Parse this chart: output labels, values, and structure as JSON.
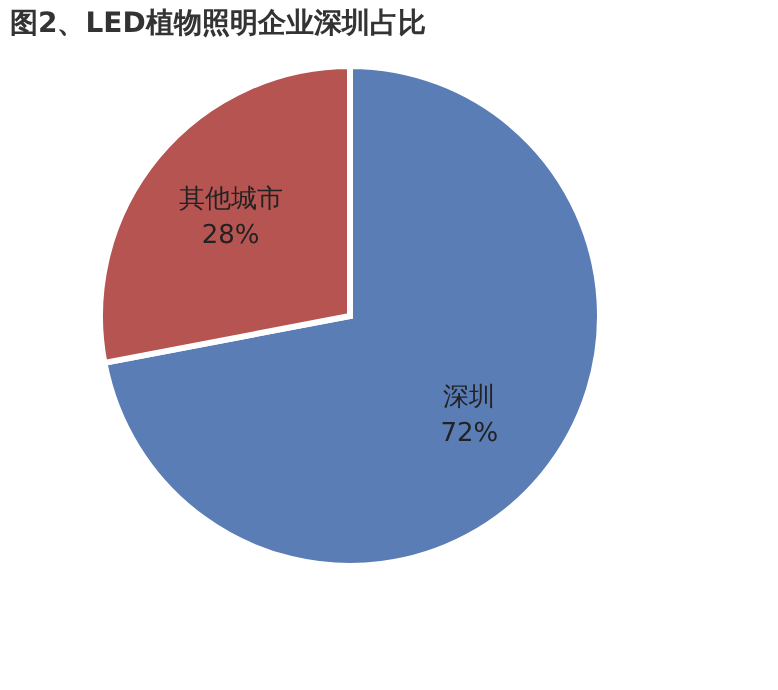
{
  "chart_data": {
    "type": "pie",
    "title": "图2、LED植物照明企业深圳占比",
    "categories": [
      "深圳",
      "其他城市"
    ],
    "values": [
      72,
      28
    ],
    "colors": [
      "#5a7db5",
      "#b65452"
    ],
    "value_labels": [
      "72%",
      "28%"
    ],
    "legend": false
  }
}
